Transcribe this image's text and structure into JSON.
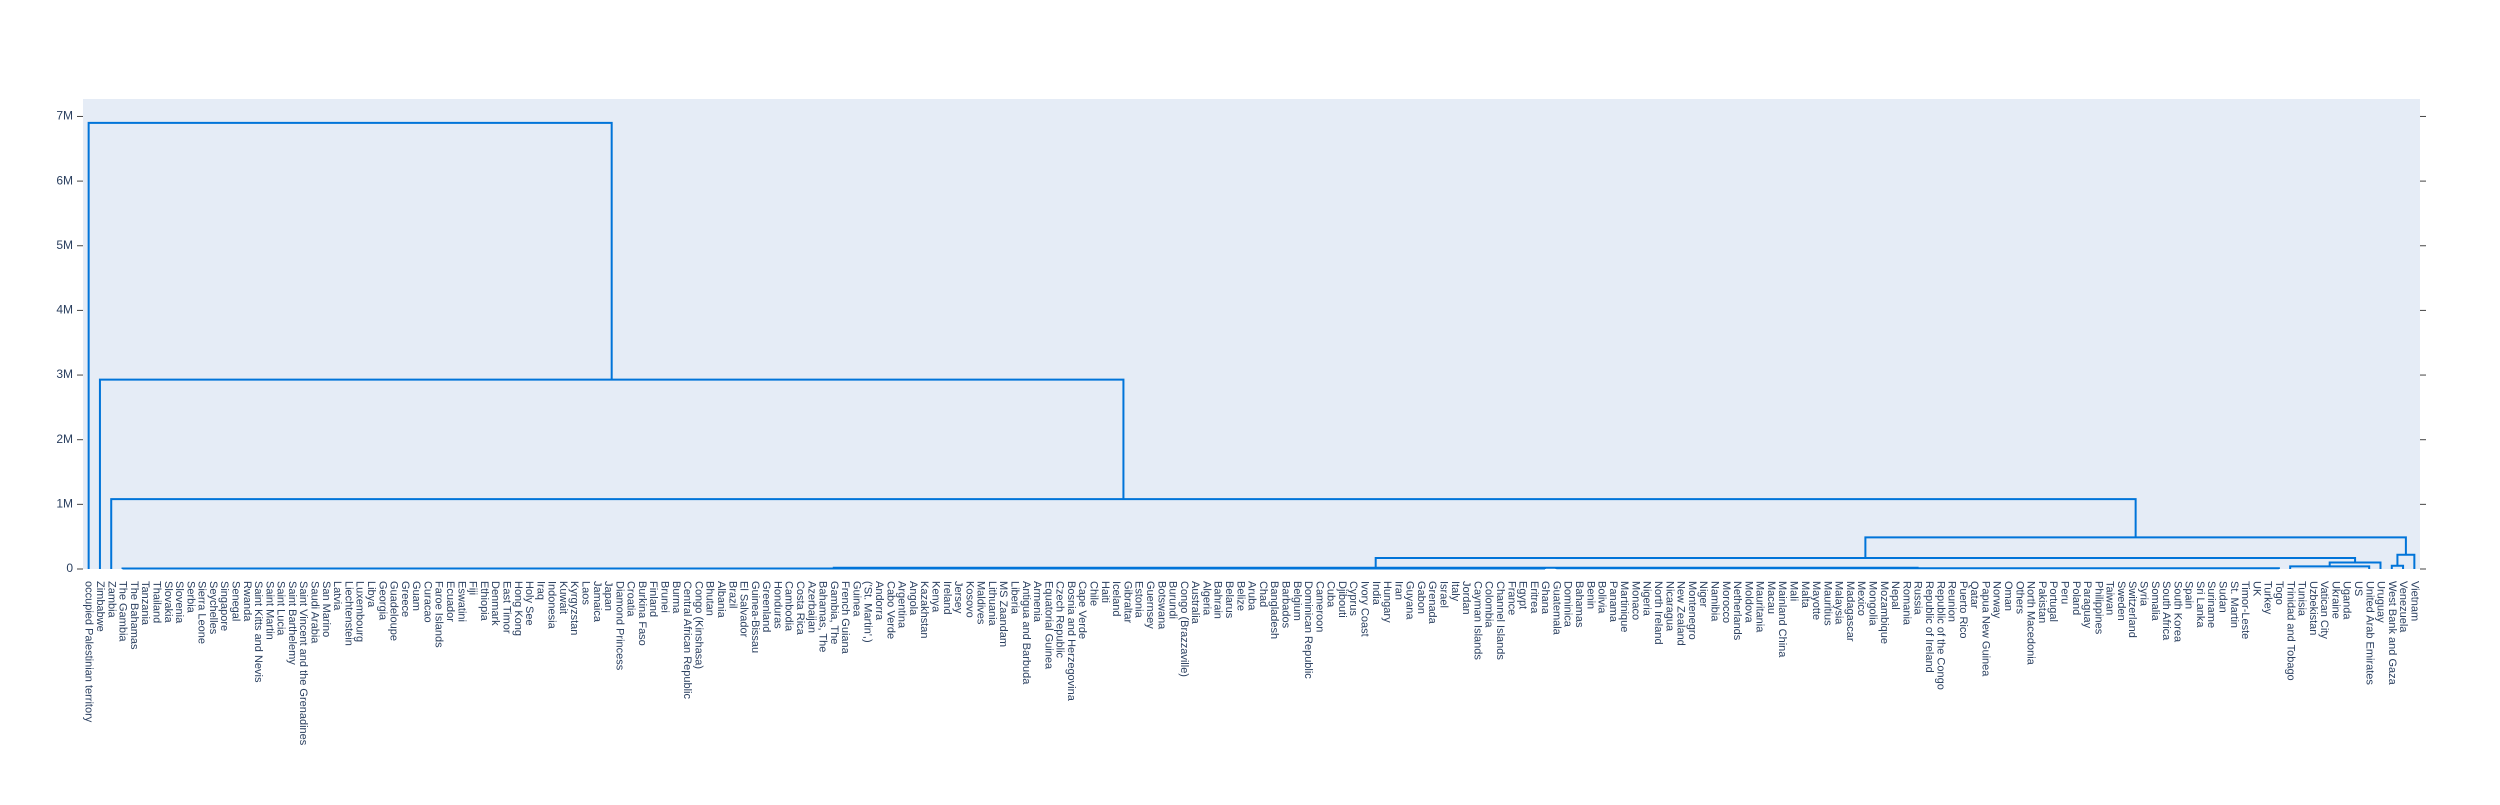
{
  "chart_data": {
    "type": "dendrogram",
    "color": "rgb(0,116,217)",
    "background": "#e5ecf6",
    "xlim": [
      0,
      2070
    ],
    "ylim": [
      0,
      7270000
    ],
    "yticks": [
      {
        "value": 0,
        "label": "0"
      },
      {
        "value": 1000000,
        "label": "1M"
      },
      {
        "value": 2000000,
        "label": "2M"
      },
      {
        "value": 3000000,
        "label": "3M"
      },
      {
        "value": 4000000,
        "label": "4M"
      },
      {
        "value": 5000000,
        "label": "5M"
      },
      {
        "value": 6000000,
        "label": "6M"
      },
      {
        "value": 7000000,
        "label": "7M"
      }
    ],
    "categories": [
      "occupied Palestinian territory",
      "Zimbabwe",
      "Zambia",
      "The Gambia",
      "The Bahamas",
      "Tanzania",
      "Thailand",
      "Slovakia",
      "Slovenia",
      "Serbia",
      "Sierra Leone",
      "Seychelles",
      "Singapore",
      "Senegal",
      "Rwanda",
      "Saint Kitts and Nevis",
      "Saint Martin",
      "Saint Lucia",
      "Saint Barthelemy",
      "Saint Vincent and the Grenadines",
      "Saudi Arabia",
      "San Marino",
      "Latvia",
      "Liechtenstein",
      "Luxembourg",
      "Libya",
      "Georgia",
      "Guadeloupe",
      "Greece",
      "Guam",
      "Curacao",
      "Faroe Islands",
      "Ecuador",
      "Eswatini",
      "Fiji",
      "Ethiopia",
      "Denmark",
      "East Timor",
      "Hong Kong",
      "Holy See",
      "Iraq",
      "Indonesia",
      "Kuwait",
      "Kyrgyzstan",
      "Laos",
      "Jamaica",
      "Japan",
      "Diamond Princess",
      "Croatia",
      "Burkina Faso",
      "Finland",
      "Brunei",
      "Burma",
      "Central African Republic",
      "Congo (Kinshasa)",
      "Bhutan",
      "Albania",
      "Brazil",
      "El Salvador",
      "Guinea-Bissau",
      "Greenland",
      "Honduras",
      "Cambodia",
      "Costa Rica",
      "Azerbaijan",
      "Bahamas, The",
      "Gambia, The",
      "French Guiana",
      "Guinea",
      "('St. Martin',)",
      "Andorra",
      "Cabo Verde",
      "Argentina",
      "Angola",
      "Kazakhstan",
      "Kenya",
      "Ireland",
      "Jersey",
      "Kosovo",
      "Maldives",
      "Lithuania",
      "MS Zaandam",
      "Liberia",
      "Antigua and Barbuda",
      "Armenia",
      "Equatorial Guinea",
      "Czech Republic",
      "Bosnia and Herzegovina",
      "Cape Verde",
      "Chile",
      "Haiti",
      "Iceland",
      "Gibraltar",
      "Estonia",
      "Guernsey",
      "Botswana",
      "Burundi",
      "Congo (Brazzaville)",
      "Australia",
      "Algeria",
      "Bahrain",
      "Belarus",
      "Belize",
      "Aruba",
      "Chad",
      "Bangladesh",
      "Barbados",
      "Belgium",
      "Dominican Republic",
      "Cameroon",
      "Cuba",
      "Djibouti",
      "Cyprus",
      "Ivory Coast",
      "India",
      "Hungary",
      "Iran",
      "Guyana",
      "Gabon",
      "Grenada",
      "Israel",
      "Italy",
      "Jordan",
      "Cayman Islands",
      "Colombia",
      "Channel Islands",
      "France",
      "Egypt",
      "Eritrea",
      "Ghana",
      "Guatemala",
      "Dominica",
      "Bahamas",
      "Benin",
      "Bolivia",
      "Panama",
      "Martinique",
      "Monaco",
      "Nigeria",
      "North Ireland",
      "Nicaragua",
      "New Zealand",
      "Montenegro",
      "Niger",
      "Namibia",
      "Morocco",
      "Netherlands",
      "Moldova",
      "Mauritania",
      "Macau",
      "Mainland China",
      "Mali",
      "Malta",
      "Mayotte",
      "Mauritius",
      "Malaysia",
      "Madagascar",
      "Mexico",
      "Mongolia",
      "Mozambique",
      "Nepal",
      "Romania",
      "Russia",
      "Republic of Ireland",
      "Republic of the Congo",
      "Reunion",
      "Puerto Rico",
      "Qatar",
      "Papua New Guinea",
      "Norway",
      "Oman",
      "Others",
      "North Macedonia",
      "Pakistan",
      "Portugal",
      "Peru",
      "Poland",
      "Paraguay",
      "Philippines",
      "Taiwan",
      "Sweden",
      "Switzerland",
      "Syria",
      "Somalia",
      "South Africa",
      "South Korea",
      "Spain",
      "Sri Lanka",
      "Suriname",
      "Sudan",
      "St. Martin",
      "Timor-Leste",
      "UK",
      "Turkey",
      "Togo",
      "Trinidad and Tobago",
      "Tunisia",
      "Uzbekistan",
      "Vatican City",
      "Ukraine",
      "Uganda",
      "US",
      "United Arab Emirates",
      "Uruguay",
      "West Bank and Gaza",
      "Venezuela",
      "Vietnam"
    ],
    "links": [
      {
        "x": [
          35,
          35,
          1295,
          1295
        ],
        "y": [
          0,
          8000,
          8000,
          0
        ]
      },
      {
        "x": [
          1305,
          1305,
          1945,
          1945
        ],
        "y": [
          0,
          12000,
          12000,
          0
        ]
      },
      {
        "x": [
          665,
          665,
          1625,
          1625
        ],
        "y": [
          8000,
          20000,
          20000,
          12000
        ]
      },
      {
        "x": [
          1955,
          1955,
          2025,
          2025
        ],
        "y": [
          0,
          40000,
          40000,
          0
        ]
      },
      {
        "x": [
          1990,
          1990,
          2035,
          2035
        ],
        "y": [
          40000,
          100000,
          100000,
          0
        ]
      },
      {
        "x": [
          1145,
          1145,
          2012.5,
          2012.5
        ],
        "y": [
          20000,
          170000,
          170000,
          100000
        ]
      },
      {
        "x": [
          2045,
          2045,
          2055,
          2055
        ],
        "y": [
          0,
          50000,
          50000,
          0
        ]
      },
      {
        "x": [
          2050,
          2050,
          2065,
          2065
        ],
        "y": [
          50000,
          220000,
          220000,
          0
        ]
      },
      {
        "x": [
          1578.75,
          1578.75,
          2057.5,
          2057.5
        ],
        "y": [
          170000,
          490000,
          490000,
          220000
        ]
      },
      {
        "x": [
          25,
          25,
          1818.125,
          1818.125
        ],
        "y": [
          0,
          1080000,
          1080000,
          490000
        ]
      },
      {
        "x": [
          15,
          15,
          921.5625,
          921.5625
        ],
        "y": [
          0,
          2930000,
          2930000,
          1080000
        ]
      },
      {
        "x": [
          5,
          5,
          468.28125,
          468.28125
        ],
        "y": [
          0,
          6900000,
          6900000,
          2930000
        ]
      }
    ]
  }
}
